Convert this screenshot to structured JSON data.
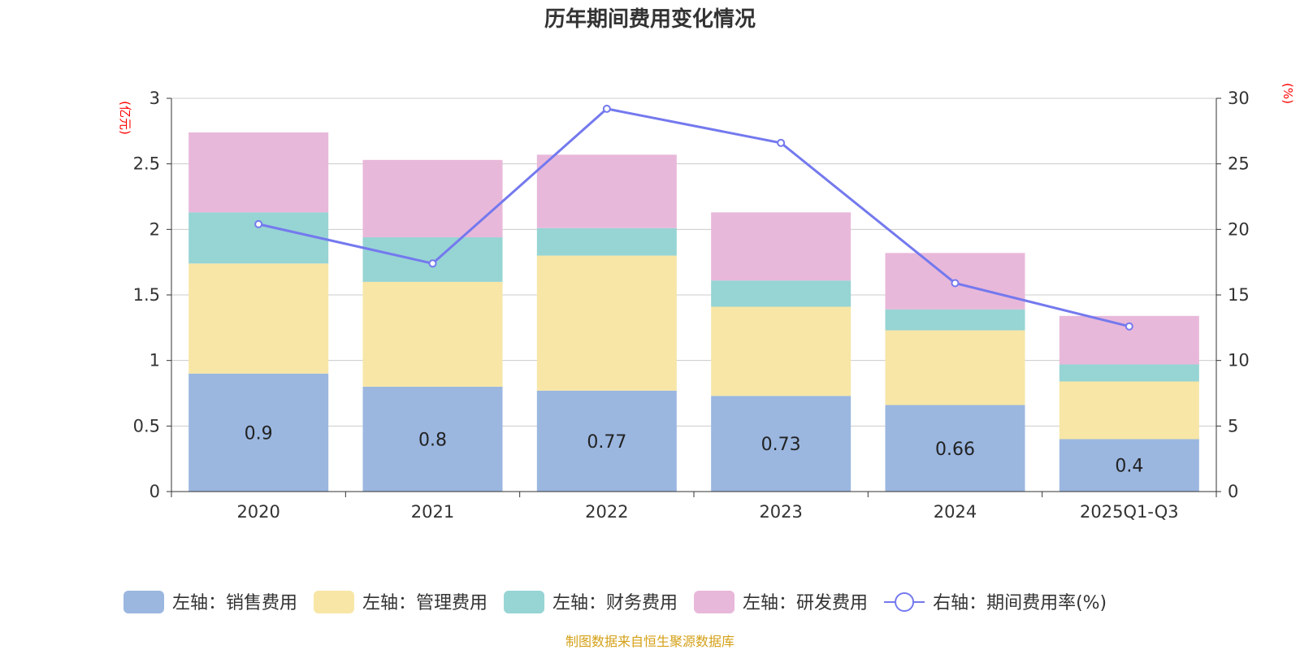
{
  "chart_data": {
    "type": "bar",
    "stacked": true,
    "title": "历年期间费用变化情况",
    "categories": [
      "2020",
      "2021",
      "2022",
      "2023",
      "2024",
      "2025Q1-Q3"
    ],
    "left_axis": {
      "unit": "(亿元)",
      "ylim": [
        0,
        3
      ],
      "ticks": [
        "0",
        "0.5",
        "1",
        "1.5",
        "2",
        "2.5",
        "3"
      ]
    },
    "right_axis": {
      "unit": "(%)",
      "ylim": [
        0,
        30
      ],
      "ticks": [
        "0",
        "5",
        "10",
        "15",
        "20",
        "25",
        "30"
      ]
    },
    "series": [
      {
        "name": "左轴：销售费用",
        "color": "#9bb7e0",
        "values": [
          0.9,
          0.8,
          0.77,
          0.73,
          0.66,
          0.4
        ],
        "show_labels": true
      },
      {
        "name": "左轴：管理费用",
        "color": "#f7e6a6",
        "values": [
          0.84,
          0.8,
          1.03,
          0.68,
          0.57,
          0.44
        ],
        "show_labels": false
      },
      {
        "name": "左轴：财务费用",
        "color": "#97d4d4",
        "values": [
          0.39,
          0.34,
          0.21,
          0.2,
          0.16,
          0.13
        ],
        "show_labels": false
      },
      {
        "name": "左轴：研发费用",
        "color": "#e8b8da",
        "values": [
          0.61,
          0.59,
          0.56,
          0.52,
          0.43,
          0.37
        ],
        "show_labels": false
      }
    ],
    "line_series": {
      "name": "右轴：期间费用率(%)",
      "color": "#7479ee",
      "axis": "right",
      "values": [
        20.4,
        17.4,
        29.2,
        26.6,
        15.9,
        12.6
      ]
    },
    "legend_position": "bottom"
  },
  "source_note": "制图数据来自恒生聚源数据库"
}
